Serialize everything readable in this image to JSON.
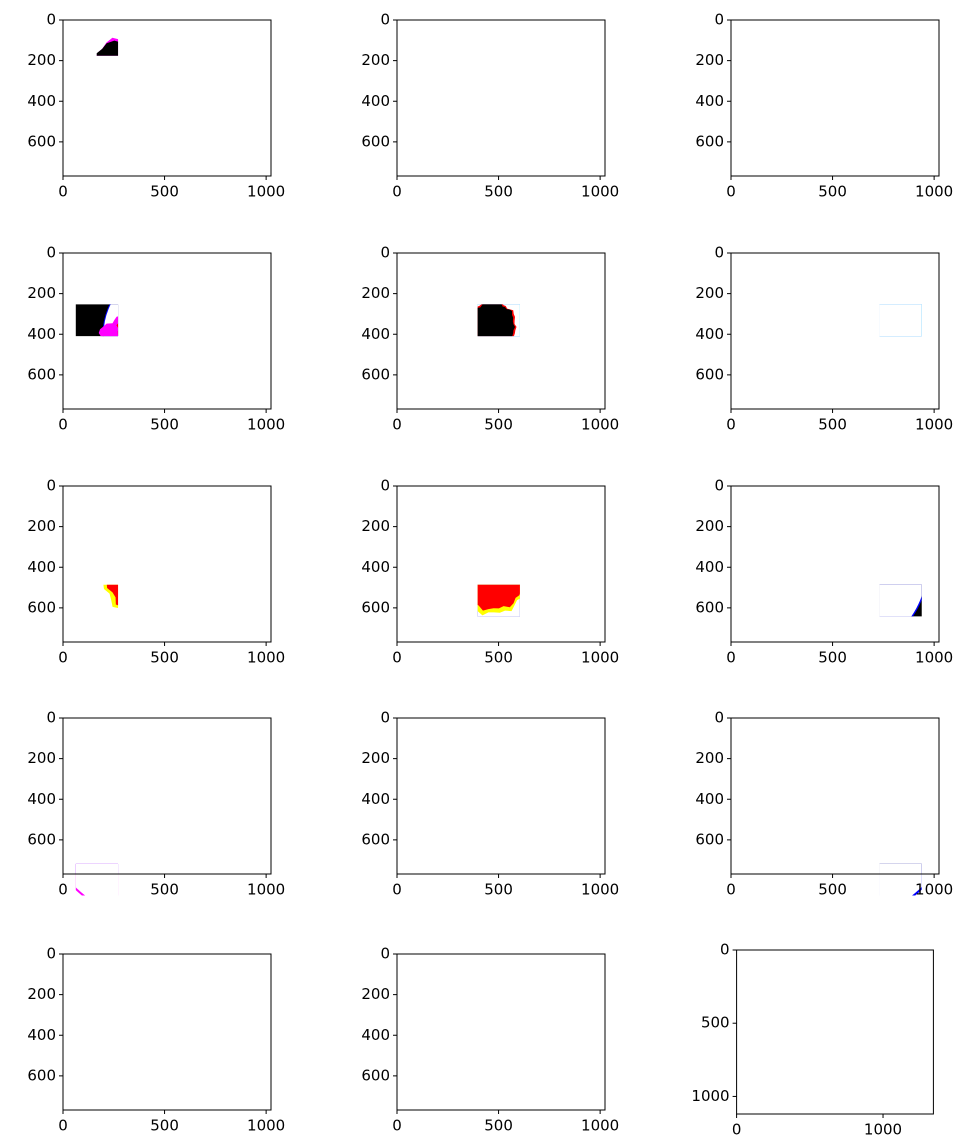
{
  "chart_data": [
    {
      "type": "image",
      "xlim": [
        0,
        1024
      ],
      "ylim": [
        768,
        0
      ],
      "xticks": [
        0,
        500,
        1000
      ],
      "yticks": [
        0,
        200,
        400,
        600
      ]
    },
    {
      "type": "image",
      "xlim": [
        0,
        1024
      ],
      "ylim": [
        768,
        0
      ],
      "xticks": [
        0,
        500,
        1000
      ],
      "yticks": [
        0,
        200,
        400,
        600
      ]
    },
    {
      "type": "image",
      "xlim": [
        0,
        1024
      ],
      "ylim": [
        768,
        0
      ],
      "xticks": [
        0,
        500,
        1000
      ],
      "yticks": [
        0,
        200,
        400,
        600
      ]
    },
    {
      "type": "image",
      "xlim": [
        0,
        1024
      ],
      "ylim": [
        768,
        0
      ],
      "xticks": [
        0,
        500,
        1000
      ],
      "yticks": [
        0,
        200,
        400,
        600
      ]
    },
    {
      "type": "image",
      "xlim": [
        0,
        1024
      ],
      "ylim": [
        768,
        0
      ],
      "xticks": [
        0,
        500,
        1000
      ],
      "yticks": [
        0,
        200,
        400,
        600
      ]
    },
    {
      "type": "image",
      "xlim": [
        0,
        1024
      ],
      "ylim": [
        768,
        0
      ],
      "xticks": [
        0,
        500,
        1000
      ],
      "yticks": [
        0,
        200,
        400,
        600
      ]
    },
    {
      "type": "image",
      "xlim": [
        0,
        1024
      ],
      "ylim": [
        768,
        0
      ],
      "xticks": [
        0,
        500,
        1000
      ],
      "yticks": [
        0,
        200,
        400,
        600
      ]
    },
    {
      "type": "image",
      "xlim": [
        0,
        1024
      ],
      "ylim": [
        768,
        0
      ],
      "xticks": [
        0,
        500,
        1000
      ],
      "yticks": [
        0,
        200,
        400,
        600
      ]
    },
    {
      "type": "image",
      "xlim": [
        0,
        1024
      ],
      "ylim": [
        768,
        0
      ],
      "xticks": [
        0,
        500,
        1000
      ],
      "yticks": [
        0,
        200,
        400,
        600
      ]
    },
    {
      "type": "image",
      "xlim": [
        0,
        1024
      ],
      "ylim": [
        768,
        0
      ],
      "xticks": [
        0,
        500,
        1000
      ],
      "yticks": [
        0,
        200,
        400,
        600
      ]
    },
    {
      "type": "image",
      "xlim": [
        0,
        1024
      ],
      "ylim": [
        768,
        0
      ],
      "xticks": [
        0,
        500,
        1000
      ],
      "yticks": [
        0,
        200,
        400,
        600
      ]
    },
    {
      "type": "image",
      "xlim": [
        0,
        1024
      ],
      "ylim": [
        768,
        0
      ],
      "xticks": [
        0,
        500,
        1000
      ],
      "yticks": [
        0,
        200,
        400,
        600
      ]
    },
    {
      "type": "image",
      "xlim": [
        0,
        1024
      ],
      "ylim": [
        768,
        0
      ],
      "xticks": [
        0,
        500,
        1000
      ],
      "yticks": [
        0,
        200,
        400,
        600
      ]
    },
    {
      "type": "image",
      "xlim": [
        0,
        1024
      ],
      "ylim": [
        768,
        0
      ],
      "xticks": [
        0,
        500,
        1000
      ],
      "yticks": [
        0,
        200,
        400,
        600
      ]
    },
    {
      "type": "image",
      "xlim": [
        0,
        1344
      ],
      "ylim": [
        1120,
        0
      ],
      "xticks": [
        0,
        1000
      ],
      "yticks": [
        0,
        500,
        1000
      ]
    }
  ]
}
